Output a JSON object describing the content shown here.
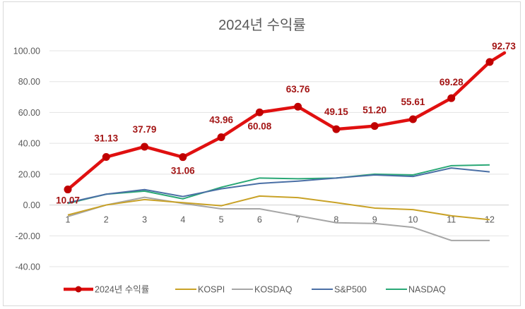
{
  "chart_data": {
    "type": "line",
    "title": "2024년 수익률",
    "xlabel": "",
    "ylabel": "",
    "categories": [
      "1",
      "2",
      "3",
      "4",
      "5",
      "6",
      "7",
      "8",
      "9",
      "10",
      "11",
      "12"
    ],
    "ylim": [
      -40,
      100
    ],
    "yticks": [
      100,
      80,
      60,
      40,
      20,
      0,
      -20,
      -40
    ],
    "ytick_labels": [
      "100.00",
      "80.00",
      "60.00",
      "40.00",
      "20.00",
      "0.00",
      "-20.00",
      "-40.00"
    ],
    "grid": true,
    "legend_position": "bottom",
    "series": [
      {
        "name": "2024년 수익률",
        "color": "#e01010",
        "markers": true,
        "data_labels": true,
        "values": [
          10.07,
          31.13,
          37.79,
          31.06,
          43.96,
          60.08,
          63.76,
          49.15,
          51.2,
          55.61,
          69.28,
          92.73
        ],
        "labels": [
          "10.07",
          "31.13",
          "37.79",
          "31.06",
          "43.96",
          "60.08",
          "63.76",
          "49.15",
          "51.20",
          "55.61",
          "69.28",
          "92.73"
        ]
      },
      {
        "name": "KOSPI",
        "color": "#c9a227",
        "markers": false,
        "values": [
          -6.5,
          0,
          3.5,
          1.5,
          -0.5,
          5.8,
          4.8,
          1.5,
          -2,
          -3,
          -7,
          -9.5
        ]
      },
      {
        "name": "KOSDAQ",
        "color": "#a6a6a6",
        "markers": false,
        "values": [
          -7.5,
          0,
          5,
          1,
          -2.5,
          -2.5,
          -7,
          -11.5,
          -12,
          -14.5,
          -23,
          -23
        ]
      },
      {
        "name": "S&P500",
        "color": "#4a6fa5",
        "markers": false,
        "values": [
          1.5,
          7,
          10,
          5.5,
          10.5,
          14,
          15.5,
          17.5,
          19.5,
          18.5,
          24,
          21.5
        ]
      },
      {
        "name": "NASDAQ",
        "color": "#2aa876",
        "markers": false,
        "values": [
          1,
          7,
          9,
          4,
          11.5,
          17.5,
          17,
          17.5,
          20,
          19.5,
          25.5,
          26
        ]
      }
    ]
  }
}
